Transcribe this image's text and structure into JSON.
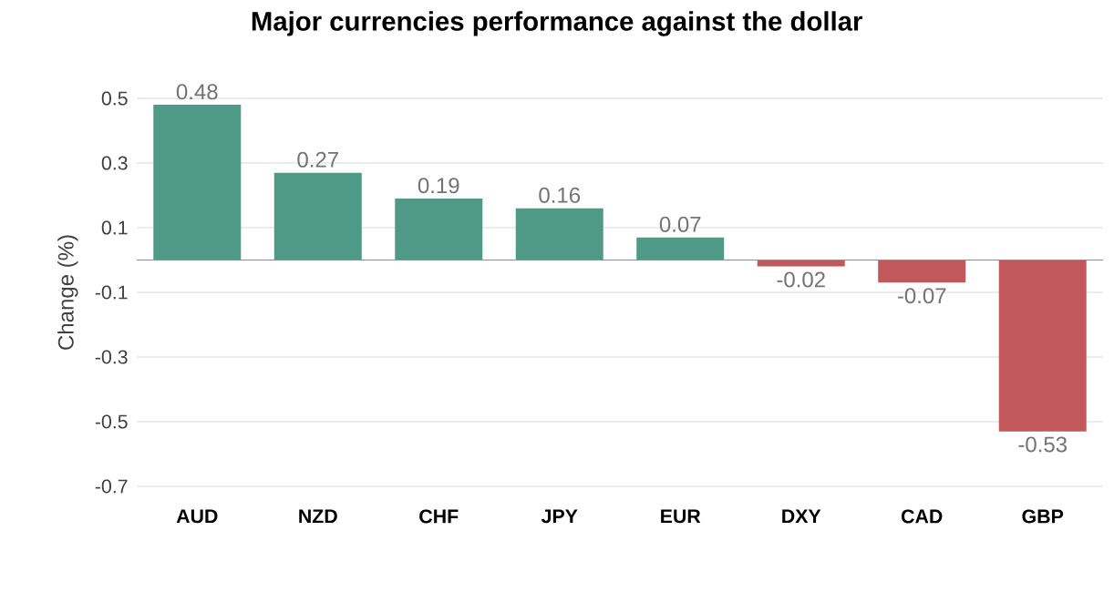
{
  "chart_data": {
    "type": "bar",
    "title": "Major currencies performance against the dollar",
    "ylabel": "Change (%)",
    "categories": [
      "AUD",
      "NZD",
      "CHF",
      "JPY",
      "EUR",
      "DXY",
      "CAD",
      "GBP"
    ],
    "values": [
      0.48,
      0.27,
      0.19,
      0.16,
      0.07,
      -0.02,
      -0.07,
      -0.53
    ],
    "colors": [
      "#4e9a86",
      "#4e9a86",
      "#4e9a86",
      "#4e9a86",
      "#4e9a86",
      "#c0585c",
      "#c0585c",
      "#c0585c"
    ],
    "ylim": [
      -0.7,
      0.5
    ],
    "yticks": [
      -0.7,
      -0.5,
      -0.3,
      -0.1,
      0.1,
      0.3,
      0.5
    ],
    "grid": "y",
    "data_labels": true
  }
}
